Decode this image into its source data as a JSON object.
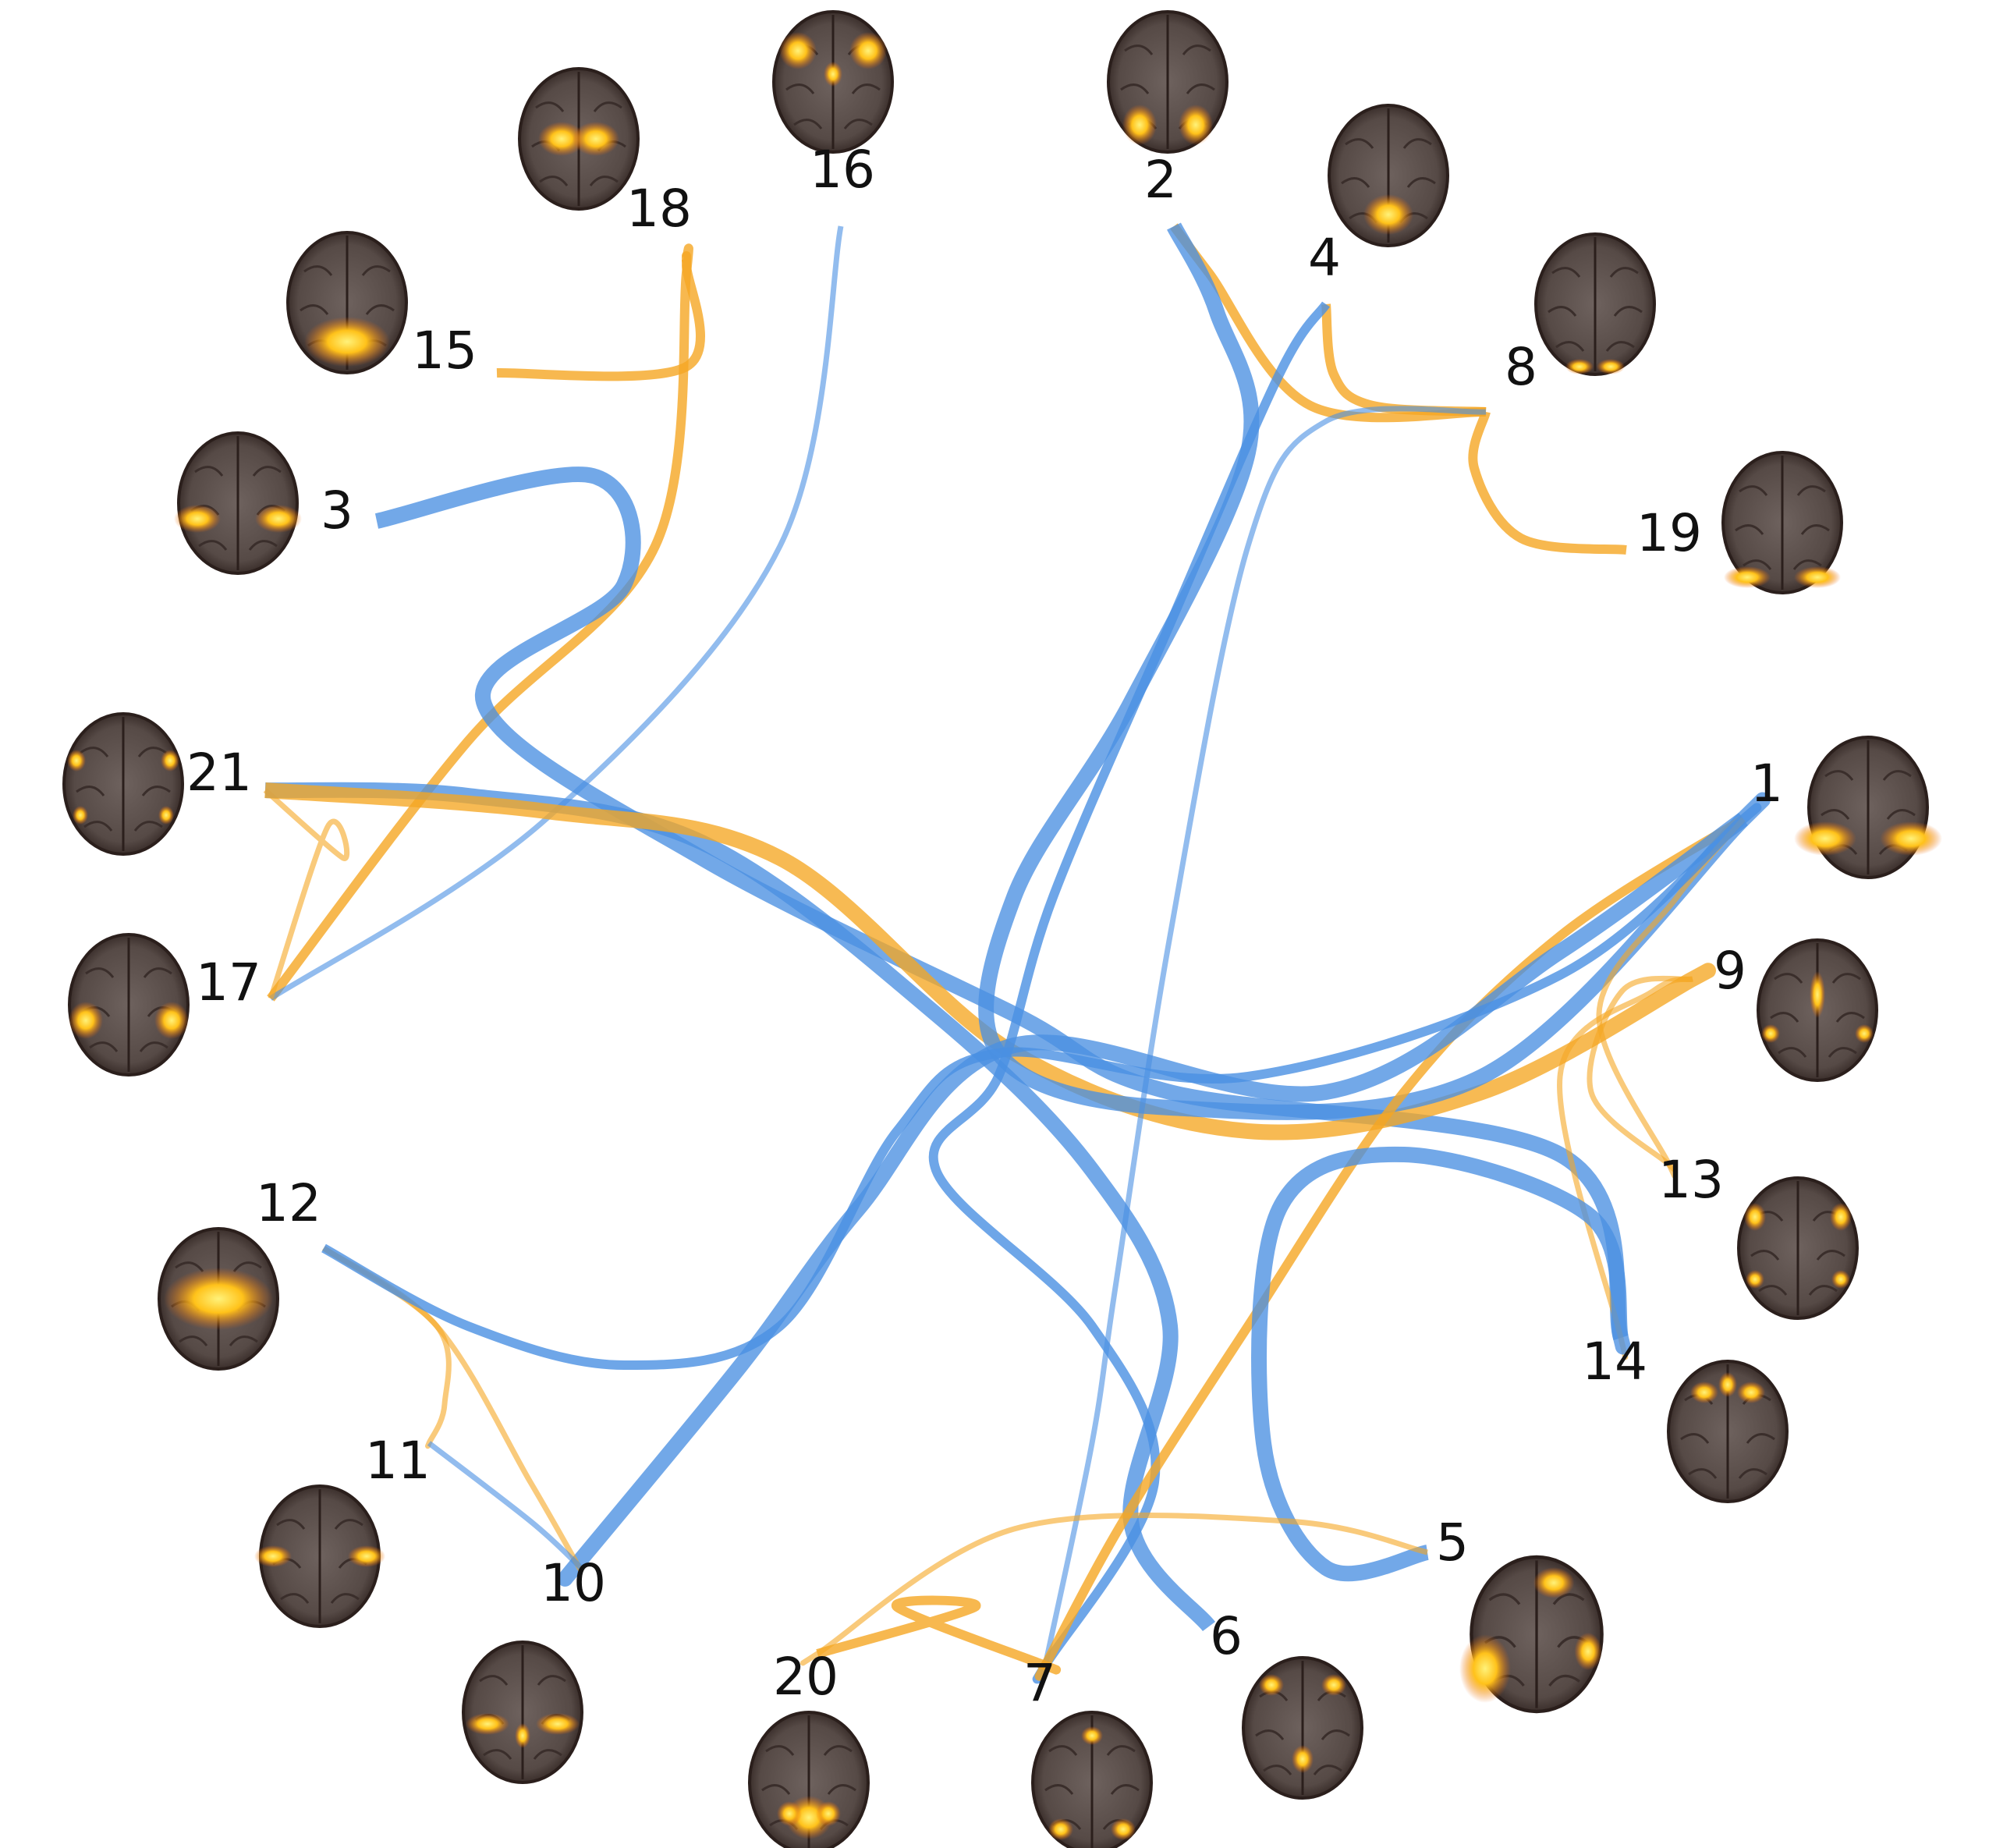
{
  "colors": {
    "positive": "#F5A623",
    "negative": "#4A90E2",
    "activation_hot": "#FFD21F",
    "activation_mid": "#E8650C",
    "brain_tissue": "#5A4D49",
    "brain_edge": "#2B1F1C",
    "background": "#FFFFFF"
  },
  "nodes": [
    {
      "id": "1",
      "label": "1"
    },
    {
      "id": "2",
      "label": "2"
    },
    {
      "id": "3",
      "label": "3"
    },
    {
      "id": "4",
      "label": "4"
    },
    {
      "id": "5",
      "label": "5"
    },
    {
      "id": "6",
      "label": "6"
    },
    {
      "id": "7",
      "label": "7"
    },
    {
      "id": "8",
      "label": "8"
    },
    {
      "id": "9",
      "label": "9"
    },
    {
      "id": "10",
      "label": "10"
    },
    {
      "id": "11",
      "label": "11"
    },
    {
      "id": "12",
      "label": "12"
    },
    {
      "id": "13",
      "label": "13"
    },
    {
      "id": "14",
      "label": "14"
    },
    {
      "id": "15",
      "label": "15"
    },
    {
      "id": "16",
      "label": "16"
    },
    {
      "id": "17",
      "label": "17"
    },
    {
      "id": "18",
      "label": "18"
    },
    {
      "id": "19",
      "label": "19"
    },
    {
      "id": "20",
      "label": "20"
    },
    {
      "id": "21",
      "label": "21"
    }
  ],
  "edges": [
    {
      "from": "15",
      "to": "18",
      "sign": "positive",
      "strength": "medium"
    },
    {
      "from": "18",
      "to": "17",
      "sign": "positive",
      "strength": "medium"
    },
    {
      "from": "16",
      "to": "17",
      "sign": "negative",
      "strength": "weak"
    },
    {
      "from": "21",
      "to": "17",
      "sign": "positive",
      "strength": "weak"
    },
    {
      "from": "3",
      "to": "14",
      "sign": "negative",
      "strength": "strong"
    },
    {
      "from": "21",
      "to": "6",
      "sign": "negative",
      "strength": "strong"
    },
    {
      "from": "21",
      "to": "9",
      "sign": "positive",
      "strength": "strong"
    },
    {
      "from": "2",
      "to": "8",
      "sign": "positive",
      "strength": "medium"
    },
    {
      "from": "4",
      "to": "8",
      "sign": "positive",
      "strength": "medium"
    },
    {
      "from": "8",
      "to": "19",
      "sign": "positive",
      "strength": "medium"
    },
    {
      "from": "8",
      "to": "7",
      "sign": "negative",
      "strength": "weak"
    },
    {
      "from": "2",
      "to": "1",
      "sign": "negative",
      "strength": "strong"
    },
    {
      "from": "4",
      "to": "7",
      "sign": "negative",
      "strength": "medium"
    },
    {
      "from": "1",
      "to": "7",
      "sign": "positive",
      "strength": "medium"
    },
    {
      "from": "1",
      "to": "10",
      "sign": "negative",
      "strength": "strong"
    },
    {
      "from": "1",
      "to": "13",
      "sign": "positive",
      "strength": "weak"
    },
    {
      "from": "9",
      "to": "13",
      "sign": "positive",
      "strength": "weak"
    },
    {
      "from": "9",
      "to": "14",
      "sign": "positive",
      "strength": "weak"
    },
    {
      "from": "5",
      "to": "14",
      "sign": "negative",
      "strength": "strong"
    },
    {
      "from": "5",
      "to": "20",
      "sign": "positive",
      "strength": "weak"
    },
    {
      "from": "20",
      "to": "7",
      "sign": "positive",
      "strength": "medium"
    },
    {
      "from": "12",
      "to": "11",
      "sign": "positive",
      "strength": "weak"
    },
    {
      "from": "12",
      "to": "10",
      "sign": "positive",
      "strength": "weak"
    },
    {
      "from": "11",
      "to": "10",
      "sign": "negative",
      "strength": "weak"
    },
    {
      "from": "12",
      "to": "1",
      "sign": "negative",
      "strength": "medium"
    }
  ]
}
